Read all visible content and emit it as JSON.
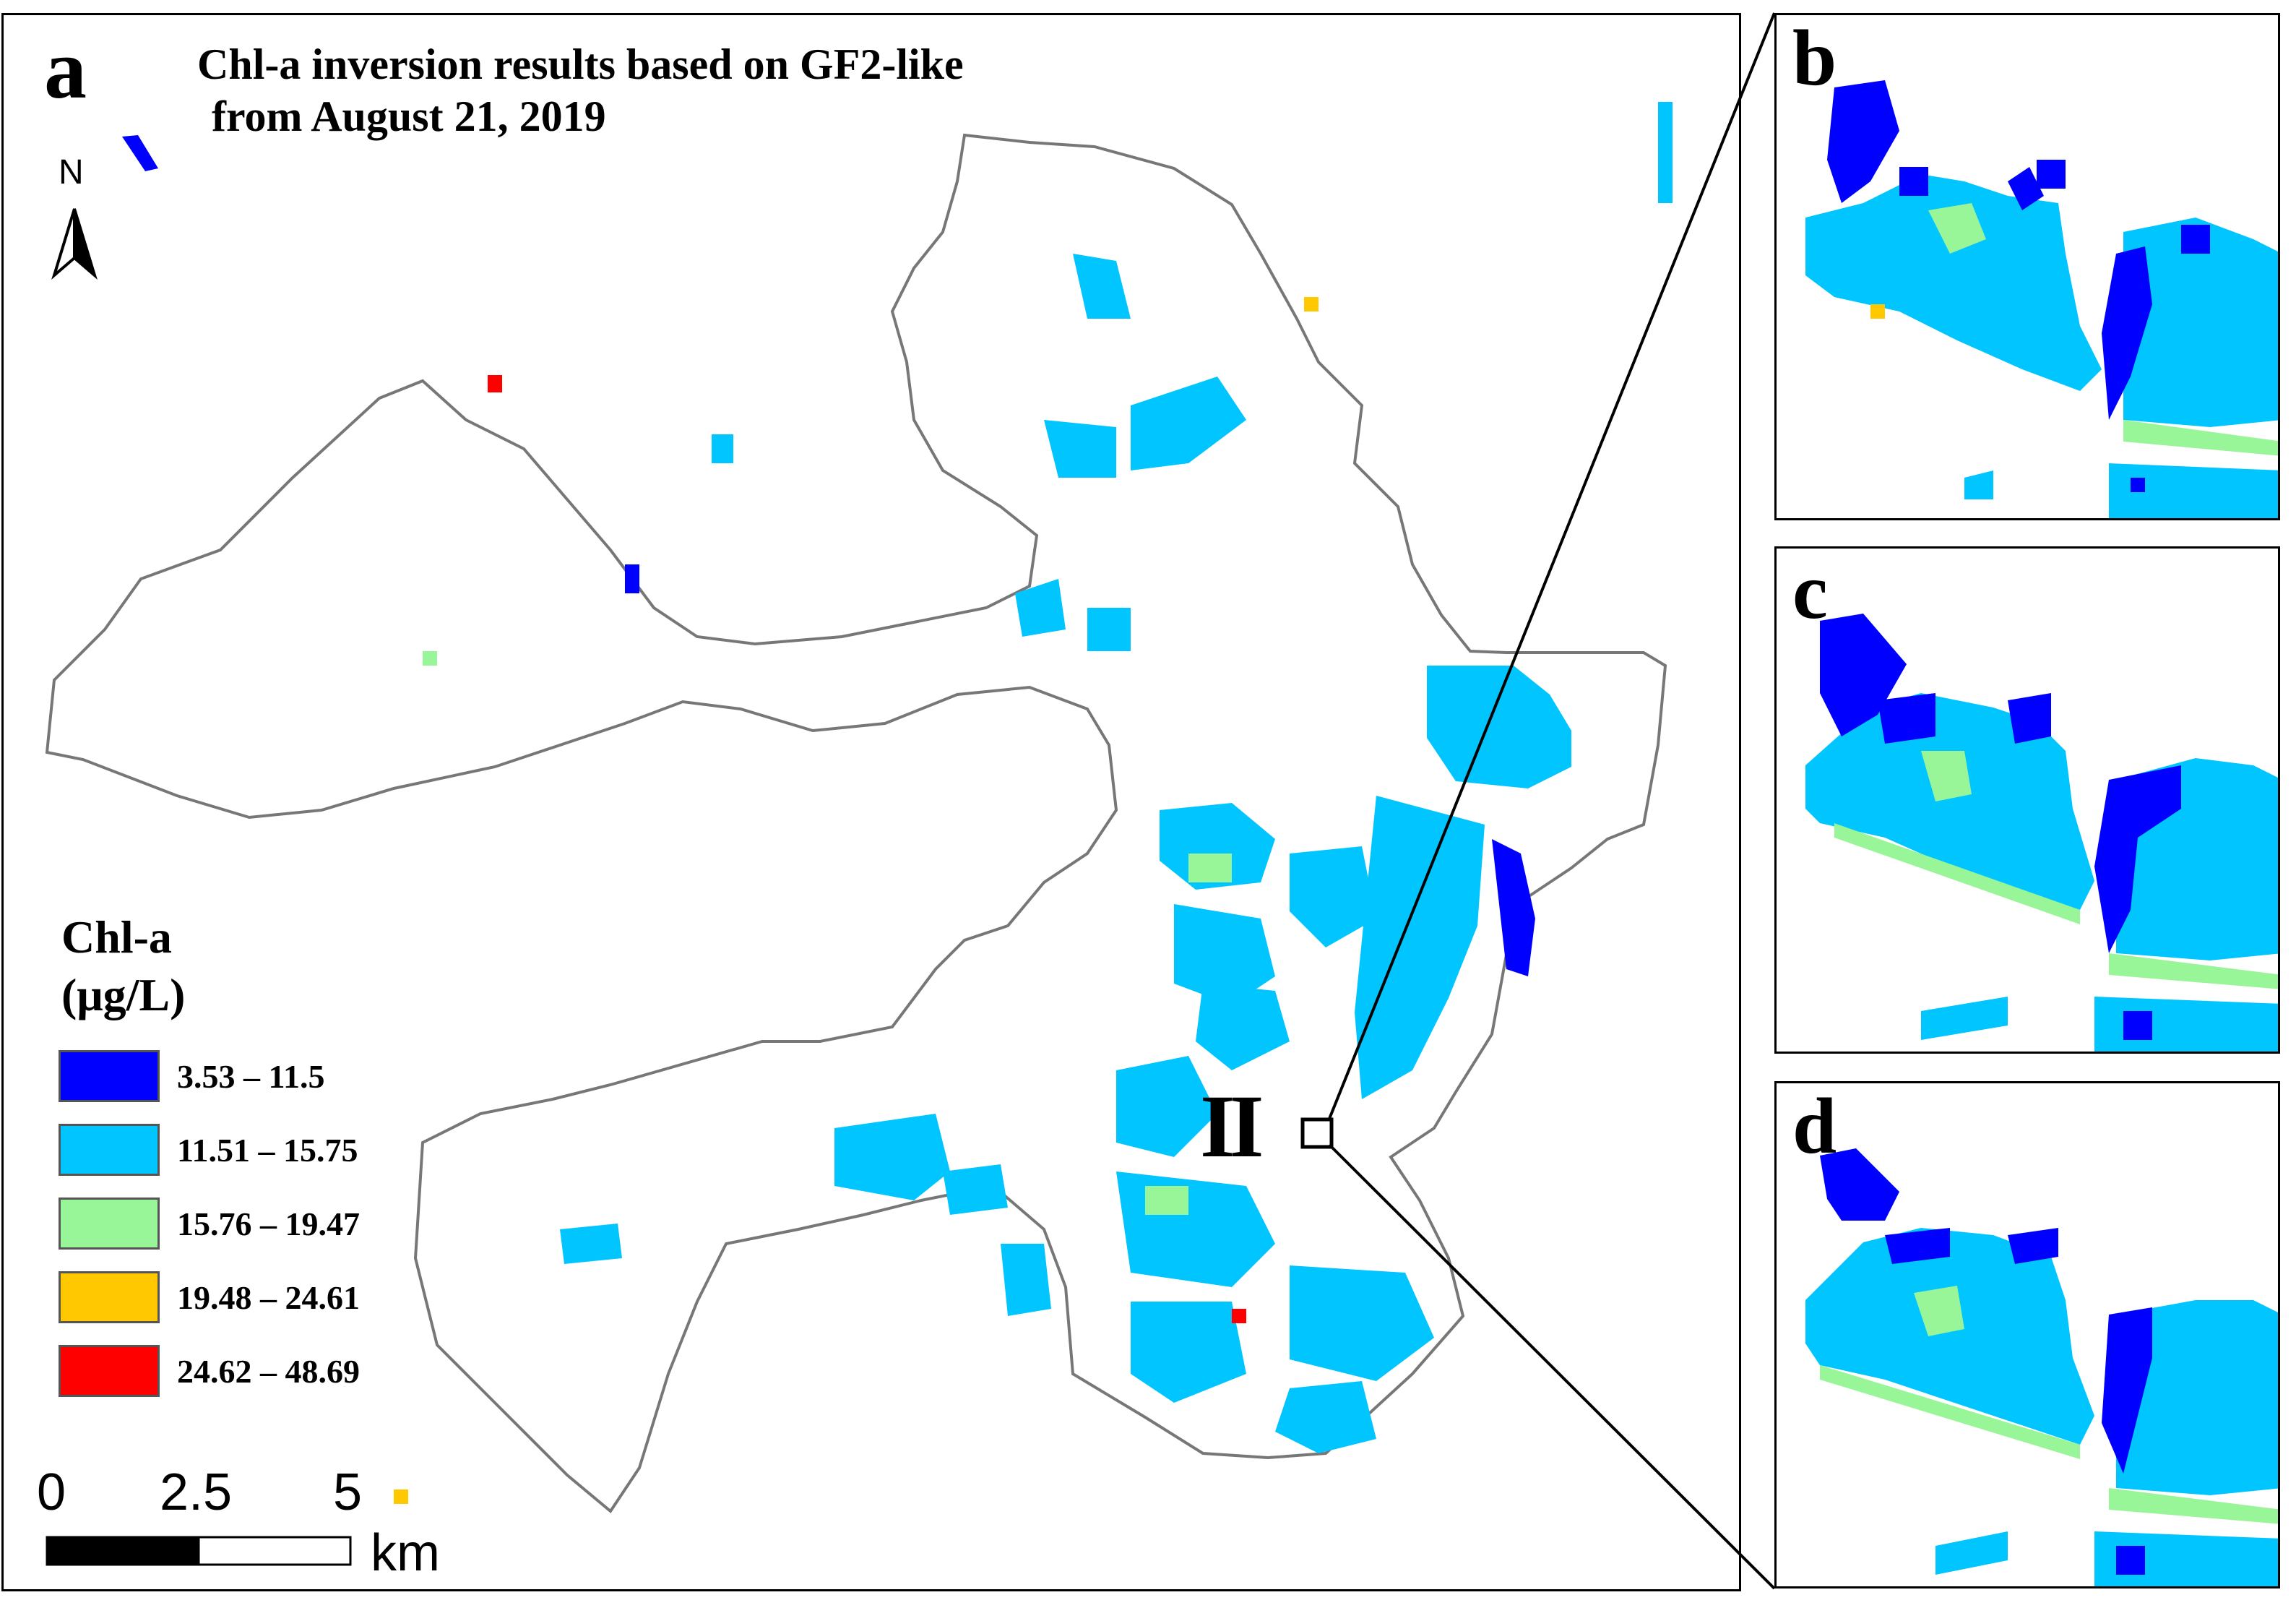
{
  "panels": {
    "a": {
      "letter": "a",
      "title_line1": "Chl-a inversion results based on GF2-like",
      "title_line2": "from August 21, 2019",
      "north_label": "N",
      "site_label": "II",
      "legend": {
        "title_line1": "Chl-a",
        "title_line2": "(μg/L)",
        "classes": [
          {
            "label": "3.53 – 11.5",
            "color": "#0000ff"
          },
          {
            "label": "11.51 – 15.75",
            "color": "#00c5ff"
          },
          {
            "label": "15.76 – 19.47",
            "color": "#98f598"
          },
          {
            "label": "19.48 – 24.61",
            "color": "#ffc800"
          },
          {
            "label": "24.62 – 48.69",
            "color": "#ff0000"
          }
        ]
      },
      "scale_bar": {
        "ticks": [
          "0",
          "2.5",
          "5"
        ],
        "unit": "km"
      }
    },
    "b": {
      "letter": "b"
    },
    "c": {
      "letter": "c"
    },
    "d": {
      "letter": "d"
    }
  },
  "colors": {
    "boundary": "#777777",
    "frame": "#000000",
    "water_body": "#00c5ff"
  }
}
